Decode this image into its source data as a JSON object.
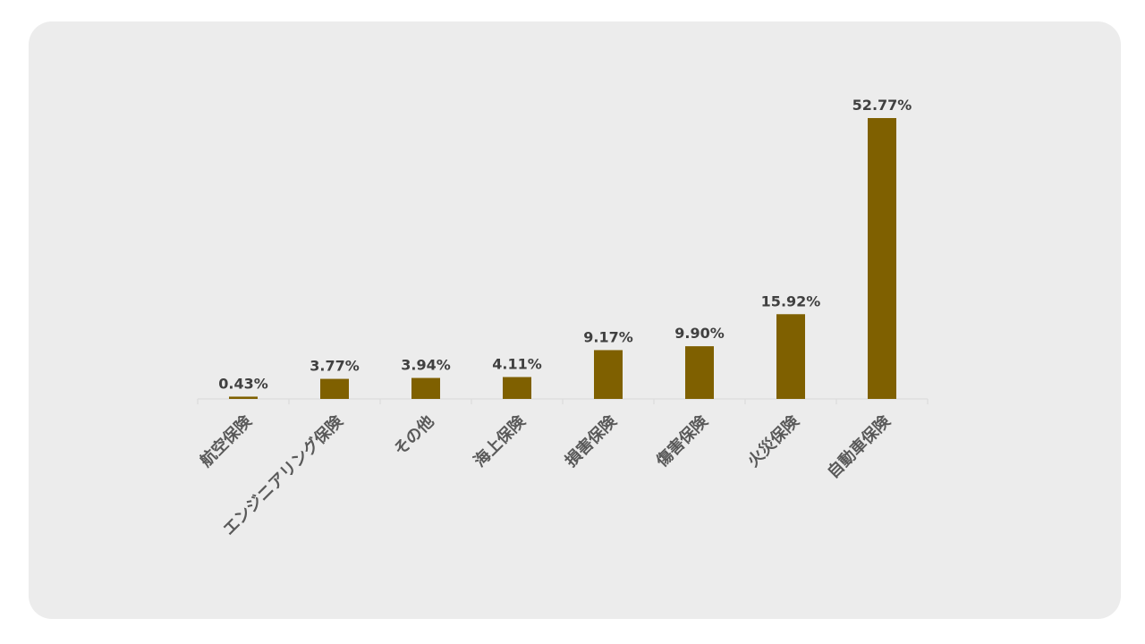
{
  "chart_data": {
    "type": "bar",
    "categories": [
      "航空保険",
      "エンジニアリング保険",
      "その他",
      "海上保険",
      "損害保険",
      "傷害保険",
      "火災保険",
      "自動車保険"
    ],
    "values": [
      0.43,
      3.77,
      3.94,
      4.11,
      9.17,
      9.9,
      15.92,
      52.77
    ],
    "value_labels": [
      "0.43%",
      "3.77%",
      "3.94%",
      "4.11%",
      "9.17%",
      "9.90%",
      "15.92%",
      "52.77%"
    ],
    "title": "",
    "xlabel": "",
    "ylabel": "",
    "ylim": [
      0,
      55
    ],
    "grid": false,
    "legend": "none",
    "bar_color": "#7f6000"
  }
}
